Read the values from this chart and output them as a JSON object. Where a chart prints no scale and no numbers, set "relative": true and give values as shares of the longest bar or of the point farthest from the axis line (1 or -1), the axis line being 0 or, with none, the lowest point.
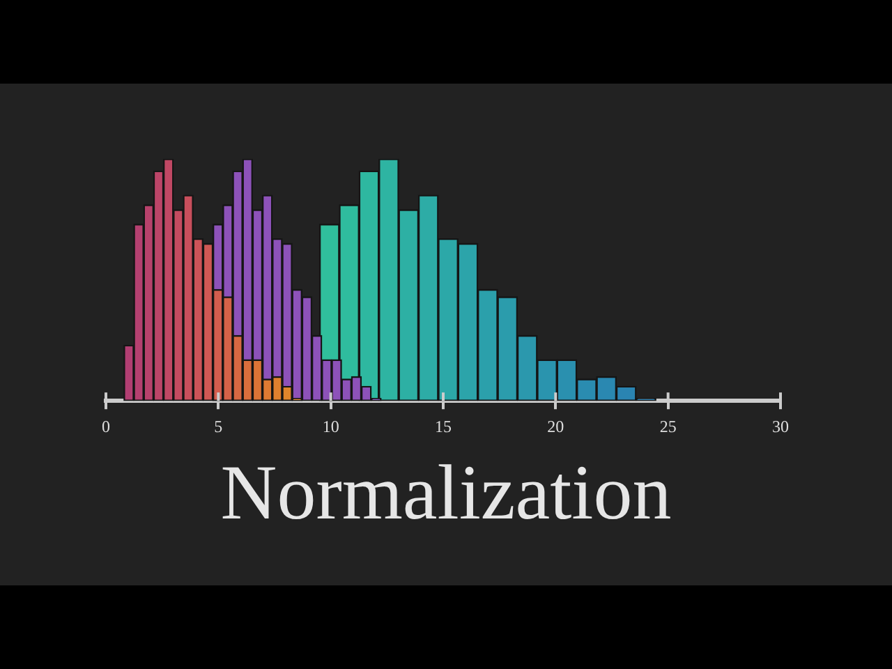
{
  "chart_data": {
    "type": "bar",
    "title": "Normalization",
    "relative": true,
    "xlim": [
      0,
      30
    ],
    "xticks": [
      0,
      5,
      10,
      15,
      20,
      25,
      30
    ],
    "grid": false,
    "legend": false,
    "series": [
      {
        "x": [
          9.94,
          10.82,
          11.7,
          12.58,
          13.46,
          14.34,
          15.22,
          16.1,
          16.98,
          17.86,
          18.74,
          19.62,
          20.5,
          21.38,
          22.26,
          23.14,
          24.02
        ],
        "values": [
          0.73,
          0.81,
          0.95,
          1,
          0.79,
          0.85,
          0.67,
          0.65,
          0.46,
          0.43,
          0.27,
          0.17,
          0.17,
          0.09,
          0.1,
          0.06,
          0.01
        ],
        "colors": [
          "#30bf9c",
          "#2fbc9e",
          "#2eb8a0",
          "#2eb4a2",
          "#2db0a4",
          "#2daca6",
          "#2ca8a8",
          "#2ca4aa",
          "#2ba0ab",
          "#2b9cac",
          "#2b98ad",
          "#2a94ae",
          "#2a90af",
          "#2a8cb0",
          "#2a88b1",
          "#2a84b2",
          "#2a80b3"
        ]
      },
      {
        "x": [
          4.98,
          5.42,
          5.86,
          6.3,
          6.74,
          7.18,
          7.62,
          8.06,
          8.5,
          8.94,
          9.38,
          9.82,
          10.26,
          10.7,
          11.14,
          11.58,
          12.02
        ],
        "values": [
          0.73,
          0.81,
          0.95,
          1,
          0.79,
          0.85,
          0.67,
          0.65,
          0.46,
          0.43,
          0.27,
          0.17,
          0.17,
          0.09,
          0.1,
          0.06,
          0.01
        ],
        "color": "#8d52b9"
      },
      {
        "x": [
          1.02,
          1.46,
          1.9,
          2.34,
          2.78,
          3.22,
          3.66,
          4.1,
          4.54,
          4.98,
          5.42,
          5.86,
          6.3,
          6.74,
          7.18,
          7.62,
          8.06,
          8.5
        ],
        "values": [
          0.23,
          0.73,
          0.81,
          0.95,
          1,
          0.79,
          0.85,
          0.67,
          0.65,
          0.46,
          0.43,
          0.27,
          0.17,
          0.17,
          0.09,
          0.1,
          0.06,
          0.01
        ],
        "colors": [
          "#b23e72",
          "#b54070",
          "#b8426c",
          "#bc4568",
          "#c04864",
          "#c44b60",
          "#c84f5c",
          "#cc5358",
          "#cf5854",
          "#d25d4e",
          "#d56248",
          "#d86842",
          "#da6e3c",
          "#dc7436",
          "#de7a32",
          "#df802e",
          "#e0862b",
          "#e08a2a"
        ]
      }
    ]
  }
}
